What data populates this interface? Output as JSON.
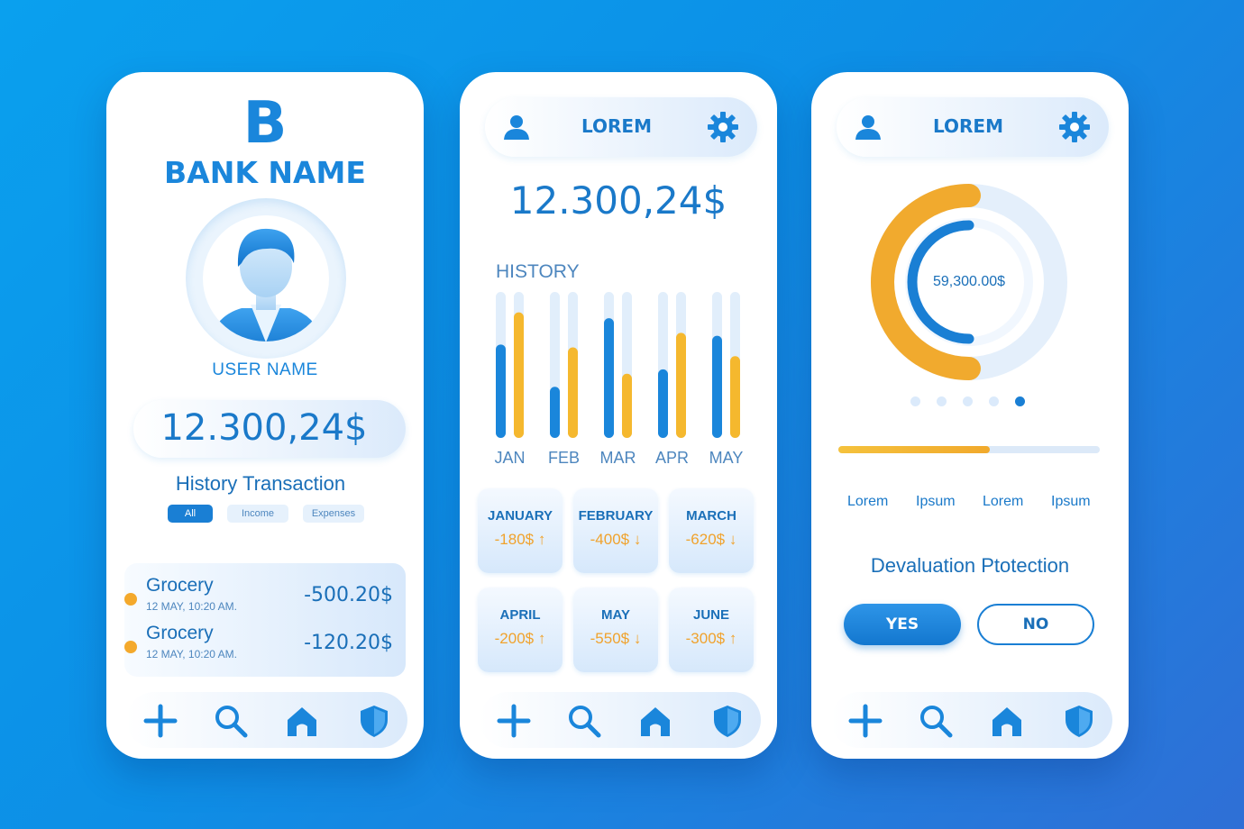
{
  "colors": {
    "accent": "#1a7fd4",
    "secondary": "#f1a92c",
    "background": "#0d8fe6",
    "card": "#ffffff"
  },
  "bottom_nav": {
    "icons": [
      "plus-icon",
      "search-icon",
      "home-icon",
      "shield-icon"
    ]
  },
  "screen1": {
    "logo_letter": "B",
    "bank_name": "BANK NAME",
    "user_name": "USER NAME",
    "balance": "12.300,24$",
    "history_title": "History Transaction",
    "filters": [
      "All",
      "Income",
      "Expenses"
    ],
    "active_filter": "All",
    "transactions": [
      {
        "name": "Grocery",
        "when": "12 MAY, 10:20 AM.",
        "amount": "-500.20$"
      },
      {
        "name": "Grocery",
        "when": "12 MAY, 10:20 AM.",
        "amount": "-120.20$"
      }
    ]
  },
  "screen2": {
    "header_title": "LOREM",
    "balance": "12.300,24$",
    "history_label": "HISTORY",
    "month_cards": [
      {
        "month": "JANUARY",
        "value": "-180$",
        "trend": "up"
      },
      {
        "month": "FEBRUARY",
        "value": "-400$",
        "trend": "down"
      },
      {
        "month": "MARCH",
        "value": "-620$",
        "trend": "down"
      },
      {
        "month": "APRIL",
        "value": "-200$",
        "trend": "up"
      },
      {
        "month": "MAY",
        "value": "-550$",
        "trend": "down"
      },
      {
        "month": "JUNE",
        "value": "-300$",
        "trend": "up"
      }
    ]
  },
  "screen3": {
    "header_title": "LOREM",
    "donut_value": "59,300.00$",
    "donut_outer_fraction": 0.5,
    "donut_inner_fraction": 0.5,
    "page_dots_count": 5,
    "page_dots_active": 4,
    "progress_fraction": 0.58,
    "labels": [
      "Lorem",
      "Ipsum",
      "Lorem",
      "Ipsum"
    ],
    "devaluation_title": "Devaluation Ptotection",
    "yes_label": "YES",
    "no_label": "NO"
  },
  "chart_data": {
    "type": "bar",
    "categories": [
      "JAN",
      "FEB",
      "MAR",
      "APR",
      "MAY"
    ],
    "series": [
      {
        "values": [
          0.64,
          0.35,
          0.82,
          0.47,
          0.7
        ],
        "color": "#1a86db"
      },
      {
        "values": [
          0.86,
          0.62,
          0.44,
          0.72,
          0.56
        ],
        "color": "#f5b82e"
      }
    ],
    "ylim": [
      0,
      1
    ],
    "title": "HISTORY",
    "xlabel": "",
    "ylabel": ""
  }
}
